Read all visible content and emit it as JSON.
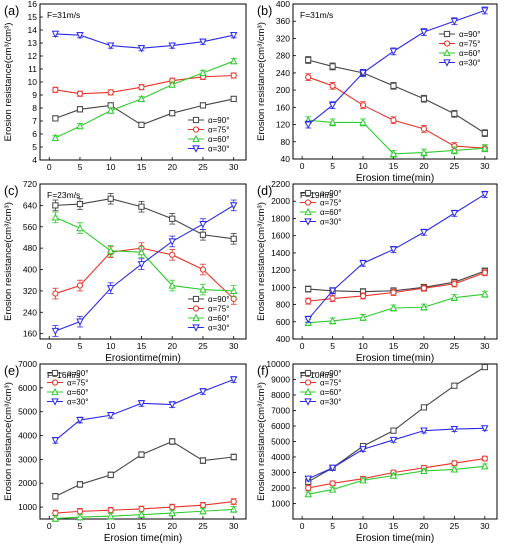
{
  "colors": {
    "a90": "#444444",
    "a75": "#e8332a",
    "a60": "#2ecc2e",
    "a30": "#2a2ae8"
  },
  "chart_data": [
    {
      "type": "line",
      "panel_label": "(a)",
      "annotation": "F=31m/s",
      "xlabel": "",
      "ylabel": "Erosion resistance(cm³/cm³)",
      "xlim": [
        -1.5,
        32
      ],
      "ylim": [
        4,
        16
      ],
      "xticks": [
        0,
        5,
        10,
        15,
        20,
        25,
        30
      ],
      "yticks": [
        4,
        5,
        6,
        7,
        8,
        9,
        10,
        11,
        12,
        13,
        14,
        15,
        16
      ],
      "legend_position": "bottom-right",
      "x": [
        1,
        5,
        10,
        15,
        20,
        25,
        30
      ],
      "series": [
        {
          "name": "α=90°",
          "marker": "square",
          "values": [
            7.2,
            7.9,
            8.2,
            6.7,
            7.6,
            8.2,
            8.7
          ]
        },
        {
          "name": "α=75°",
          "marker": "circle",
          "values": [
            9.4,
            9.1,
            9.2,
            9.6,
            10.1,
            10.4,
            10.5
          ]
        },
        {
          "name": "α=60°",
          "marker": "triangle-up",
          "values": [
            5.7,
            6.6,
            7.8,
            8.7,
            9.8,
            10.7,
            11.6
          ]
        },
        {
          "name": "α=30°",
          "marker": "triangle-down",
          "values": [
            13.7,
            13.6,
            12.8,
            12.6,
            12.8,
            13.1,
            13.6
          ]
        }
      ]
    },
    {
      "type": "line",
      "panel_label": "(b)",
      "annotation": "F=31m/s",
      "xlabel": "Erosion time(min)",
      "ylabel": "Erosion resistance(cm³/cm³)",
      "xlim": [
        -1.5,
        32
      ],
      "ylim": [
        40,
        400
      ],
      "xticks": [
        0,
        5,
        10,
        15,
        20,
        25,
        30
      ],
      "yticks": [
        40,
        80,
        120,
        160,
        200,
        240,
        280,
        320,
        360,
        400
      ],
      "legend_position": "top-right",
      "x": [
        1,
        5,
        10,
        15,
        20,
        25,
        30
      ],
      "series": [
        {
          "name": "α=90°",
          "marker": "square",
          "values": [
            270,
            255,
            240,
            210,
            180,
            145,
            100
          ]
        },
        {
          "name": "α=75°",
          "marker": "circle",
          "values": [
            230,
            210,
            165,
            130,
            110,
            70,
            65
          ]
        },
        {
          "name": "α=60°",
          "marker": "triangle-up",
          "values": [
            130,
            125,
            125,
            52,
            55,
            60,
            65
          ]
        },
        {
          "name": "α=30°",
          "marker": "triangle-down",
          "values": [
            120,
            165,
            240,
            290,
            335,
            360,
            385
          ]
        }
      ]
    },
    {
      "type": "line",
      "panel_label": "(c)",
      "annotation": "F=23m/s",
      "xlabel": "Erosiontime(min)",
      "ylabel": "Erosion resistance(cm³/cm³)",
      "xlim": [
        -1.5,
        32
      ],
      "ylim": [
        140,
        720
      ],
      "xticks": [
        0,
        5,
        10,
        15,
        20,
        25,
        30
      ],
      "yticks": [
        160,
        240,
        320,
        400,
        480,
        560,
        640,
        720
      ],
      "legend_position": "bottom-right",
      "x": [
        1,
        5,
        10,
        15,
        20,
        25,
        30
      ],
      "series": [
        {
          "name": "α=90°",
          "marker": "square",
          "values": [
            640,
            645,
            665,
            635,
            590,
            530,
            515
          ]
        },
        {
          "name": "α=75°",
          "marker": "circle",
          "values": [
            310,
            340,
            465,
            480,
            455,
            400,
            290
          ]
        },
        {
          "name": "α=60°",
          "marker": "triangle-up",
          "values": [
            595,
            555,
            470,
            465,
            340,
            325,
            320
          ]
        },
        {
          "name": "α=30°",
          "marker": "triangle-down",
          "values": [
            170,
            205,
            330,
            420,
            505,
            570,
            640
          ]
        }
      ]
    },
    {
      "type": "line",
      "panel_label": "(d)",
      "annotation": "F=19m/s",
      "xlabel": "Erosion time(min)",
      "ylabel": "Erosion resistance(cm³/cm³)",
      "xlim": [
        -1.5,
        32
      ],
      "ylim": [
        400,
        2200
      ],
      "xticks": [
        0,
        5,
        10,
        15,
        20,
        25,
        30
      ],
      "yticks": [
        400,
        600,
        800,
        1000,
        1200,
        1400,
        1600,
        1800,
        2000,
        2200
      ],
      "legend_position": "top-left",
      "x": [
        1,
        5,
        10,
        15,
        20,
        25,
        30
      ],
      "series": [
        {
          "name": "α=90°",
          "marker": "square",
          "values": [
            980,
            960,
            950,
            960,
            1000,
            1060,
            1190
          ]
        },
        {
          "name": "α=75°",
          "marker": "circle",
          "values": [
            840,
            870,
            900,
            940,
            990,
            1040,
            1170
          ]
        },
        {
          "name": "α=60°",
          "marker": "triangle-up",
          "values": [
            590,
            610,
            650,
            760,
            770,
            880,
            920
          ]
        },
        {
          "name": "α=30°",
          "marker": "triangle-down",
          "values": [
            630,
            960,
            1280,
            1440,
            1640,
            1860,
            2080
          ]
        }
      ]
    },
    {
      "type": "line",
      "panel_label": "(e)",
      "annotation": "F=16m/s",
      "xlabel": "Erosion time(min)",
      "ylabel": "Erosion resistance(cm³/cm³)",
      "xlim": [
        -1.5,
        32
      ],
      "ylim": [
        500,
        7000
      ],
      "xticks": [
        0,
        5,
        10,
        15,
        20,
        25,
        30
      ],
      "yticks": [
        1000,
        2000,
        3000,
        4000,
        5000,
        6000,
        7000
      ],
      "legend_position": "top-left",
      "x": [
        1,
        5,
        10,
        15,
        20,
        25,
        30
      ],
      "series": [
        {
          "name": "α=90°",
          "marker": "square",
          "values": [
            1450,
            1950,
            2350,
            3200,
            3750,
            2950,
            3100
          ]
        },
        {
          "name": "α=75°",
          "marker": "circle",
          "values": [
            750,
            820,
            870,
            920,
            1000,
            1080,
            1230
          ]
        },
        {
          "name": "α=60°",
          "marker": "triangle-up",
          "values": [
            520,
            580,
            620,
            680,
            750,
            830,
            900
          ]
        },
        {
          "name": "α=30°",
          "marker": "triangle-down",
          "values": [
            3800,
            4650,
            4850,
            5350,
            5300,
            5850,
            6350
          ]
        }
      ]
    },
    {
      "type": "line",
      "panel_label": "(f)",
      "annotation": "F=10m/s",
      "xlabel": "Erosion time(min)",
      "ylabel": "Erosion resistance(cm³/cm³)",
      "xlim": [
        -1.5,
        32
      ],
      "ylim": [
        0,
        10000
      ],
      "xticks": [
        0,
        5,
        10,
        15,
        20,
        25,
        30
      ],
      "yticks": [
        1000,
        2000,
        3000,
        4000,
        5000,
        6000,
        7000,
        8000,
        9000,
        10000
      ],
      "legend_position": "top-left",
      "x": [
        1,
        5,
        10,
        15,
        20,
        25,
        30
      ],
      "series": [
        {
          "name": "α=90°",
          "marker": "square",
          "values": [
            2400,
            3300,
            4700,
            5700,
            7200,
            8600,
            9800
          ]
        },
        {
          "name": "α=75°",
          "marker": "circle",
          "values": [
            2000,
            2300,
            2600,
            3000,
            3300,
            3600,
            3900
          ]
        },
        {
          "name": "α=60°",
          "marker": "triangle-up",
          "values": [
            1600,
            1900,
            2500,
            2800,
            3100,
            3200,
            3400
          ]
        },
        {
          "name": "α=30°",
          "marker": "triangle-down",
          "values": [
            2600,
            3300,
            4500,
            5100,
            5700,
            5800,
            5850
          ]
        }
      ]
    }
  ]
}
